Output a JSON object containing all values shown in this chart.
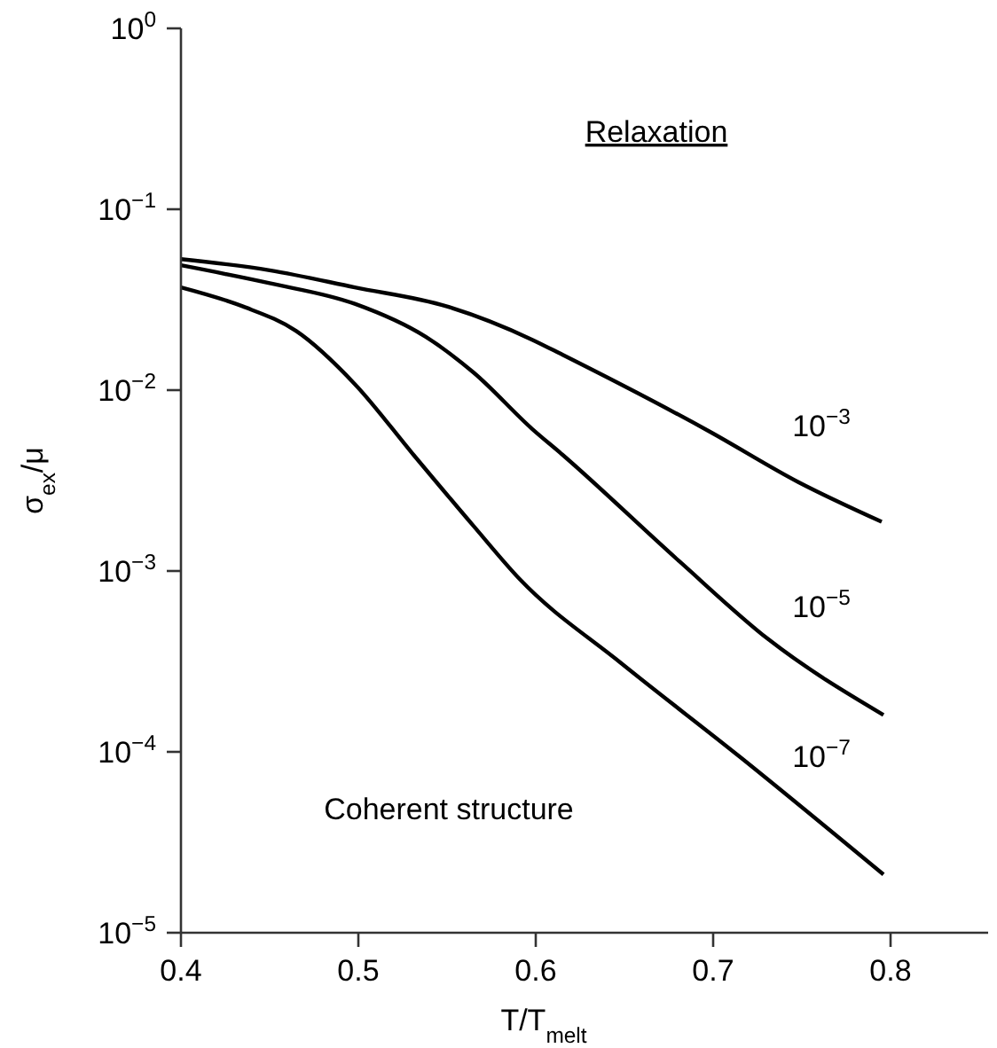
{
  "chart_data": {
    "type": "line",
    "xlabel": "T/T$_{melt}$",
    "ylabel": "σ$_{ex}$/μ",
    "log": true,
    "xlim": [
      0.4,
      0.855
    ],
    "xticks": [
      0.4,
      0.5,
      0.6,
      0.7,
      0.8
    ],
    "ylim": [
      1e-05,
      1
    ],
    "yticks": [
      {
        "value": 1e-05,
        "label": "10$^{−5}$"
      },
      {
        "value": 0.0001,
        "label": "10$^{−4}$"
      },
      {
        "value": 0.001,
        "label": "10$^{−3}$"
      },
      {
        "value": 0.01,
        "label": "10$^{−2}$"
      },
      {
        "value": 0.1,
        "label": "10$^{−1}$"
      },
      {
        "value": 1,
        "label": "10$^{0}$"
      }
    ],
    "annotations": [
      "Relaxation",
      "Coherent structure"
    ],
    "series": [
      {
        "name": "10$^{−3}$",
        "color": "#000000",
        "x": [
          0.4,
          0.45,
          0.498,
          0.55,
          0.598,
          0.615,
          0.698,
          0.748,
          0.795
        ],
        "values": [
          0.053,
          0.046,
          0.037,
          0.029,
          0.019,
          0.0157,
          0.0059,
          0.0031,
          0.00187
        ]
      },
      {
        "name": "10$^{−5}$",
        "color": "#000000",
        "x": [
          0.4,
          0.45,
          0.498,
          0.538,
          0.565,
          0.598,
          0.615,
          0.681,
          0.731,
          0.796
        ],
        "values": [
          0.049,
          0.039,
          0.03,
          0.0197,
          0.0125,
          0.0061,
          0.0044,
          0.00113,
          0.00042,
          0.00016
        ]
      },
      {
        "name": "10$^{−7}$",
        "color": "#000000",
        "x": [
          0.4,
          0.435,
          0.465,
          0.498,
          0.531,
          0.565,
          0.591,
          0.648,
          0.715,
          0.796
        ],
        "values": [
          0.037,
          0.029,
          0.0212,
          0.0108,
          0.0044,
          0.00177,
          0.0009,
          0.00031,
          9.4e-05,
          2.1e-05
        ]
      }
    ]
  }
}
